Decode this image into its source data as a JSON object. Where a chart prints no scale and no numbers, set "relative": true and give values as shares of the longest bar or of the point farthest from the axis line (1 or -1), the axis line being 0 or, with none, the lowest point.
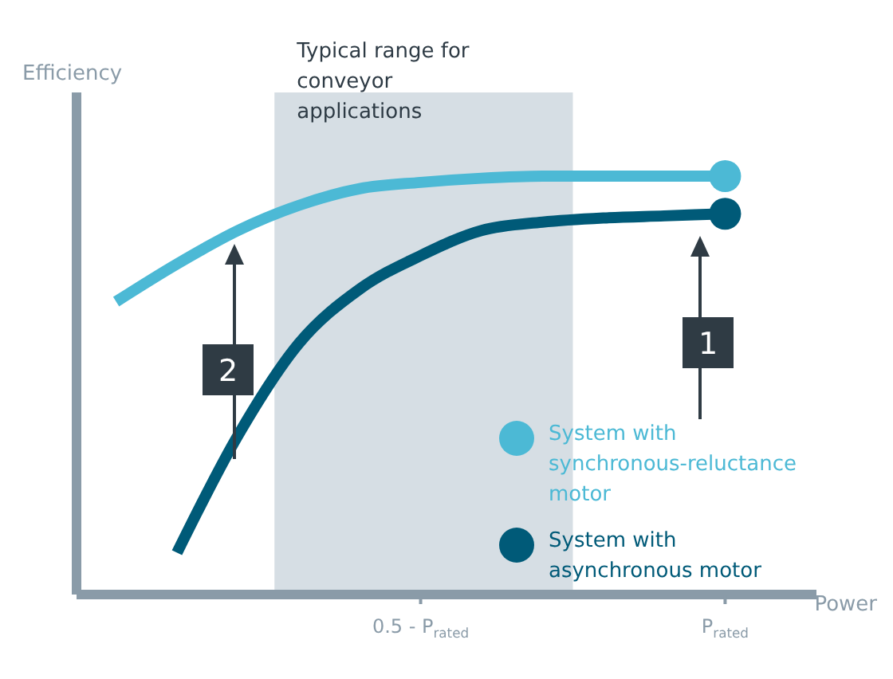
{
  "chart_data": {
    "type": "line",
    "relative": true,
    "xlabel": "Power",
    "ylabel": "Efficiency",
    "categories": [
      null,
      null,
      null,
      null,
      null,
      "0.5 - P$_{rated}$",
      null,
      null,
      null,
      null,
      "P$_{rated}$",
      null
    ],
    "legend": "bottom right",
    "line_style": "solid",
    "annotations": [
      "Typical range for conveyor applications",
      "1",
      "2"
    ],
    "series": [
      {
        "name": "System with synchronous-reluctance motor",
        "color": "#4cb9d5",
        "values": [
          0.7,
          0.79,
          0.87,
          0.93,
          0.97,
          0.985,
          0.995,
          1.0,
          1.0,
          1.0,
          1.0,
          null
        ]
      },
      {
        "name": "System with asynchronous motor",
        "color": "#005a78",
        "values": [
          null,
          0.1,
          0.38,
          0.6,
          0.73,
          0.81,
          0.87,
          0.89,
          0.9,
          0.905,
          0.91,
          null
        ]
      }
    ]
  }
}
